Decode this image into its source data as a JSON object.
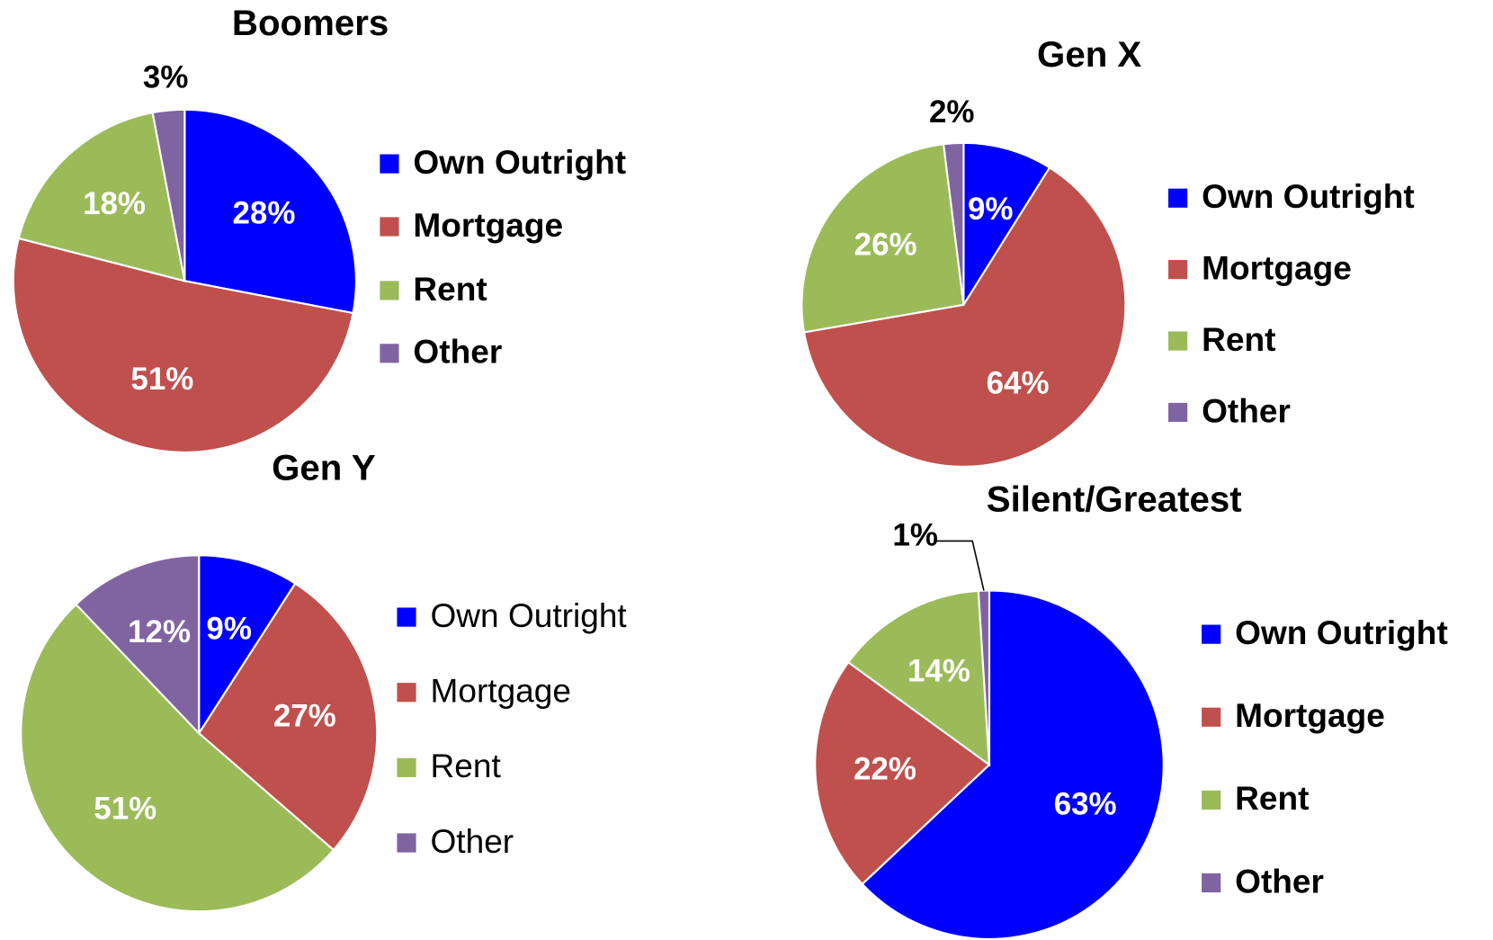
{
  "chart_data": [
    {
      "type": "pie",
      "title": "Boomers",
      "categories": [
        "Own Outright",
        "Mortgage",
        "Rent",
        "Other"
      ],
      "values": [
        28,
        51,
        18,
        3
      ],
      "value_labels": [
        "28%",
        "51%",
        "18%",
        "3%"
      ],
      "colors": [
        "#0000ff",
        "#c0504d",
        "#9bbb59",
        "#8064a2"
      ]
    },
    {
      "type": "pie",
      "title": "Gen X",
      "categories": [
        "Own Outright",
        "Mortgage",
        "Rent",
        "Other"
      ],
      "values": [
        9,
        64,
        26,
        2
      ],
      "value_labels": [
        "9%",
        "64%",
        "26%",
        "2%"
      ],
      "colors": [
        "#0000ff",
        "#c0504d",
        "#9bbb59",
        "#8064a2"
      ]
    },
    {
      "type": "pie",
      "title": "Gen Y",
      "categories": [
        "Own Outright",
        "Mortgage",
        "Rent",
        "Other"
      ],
      "values": [
        9,
        27,
        51,
        12
      ],
      "value_labels": [
        "9%",
        "27%",
        "51%",
        "12%"
      ],
      "colors": [
        "#0000ff",
        "#c0504d",
        "#9bbb59",
        "#8064a2"
      ]
    },
    {
      "type": "pie",
      "title": "Silent/Greatest",
      "categories": [
        "Own Outright",
        "Mortgage",
        "Rent",
        "Other"
      ],
      "values": [
        63,
        22,
        14,
        1
      ],
      "value_labels": [
        "63%",
        "22%",
        "14%",
        "1%"
      ],
      "colors": [
        "#0000ff",
        "#c0504d",
        "#9bbb59",
        "#8064a2"
      ]
    }
  ]
}
